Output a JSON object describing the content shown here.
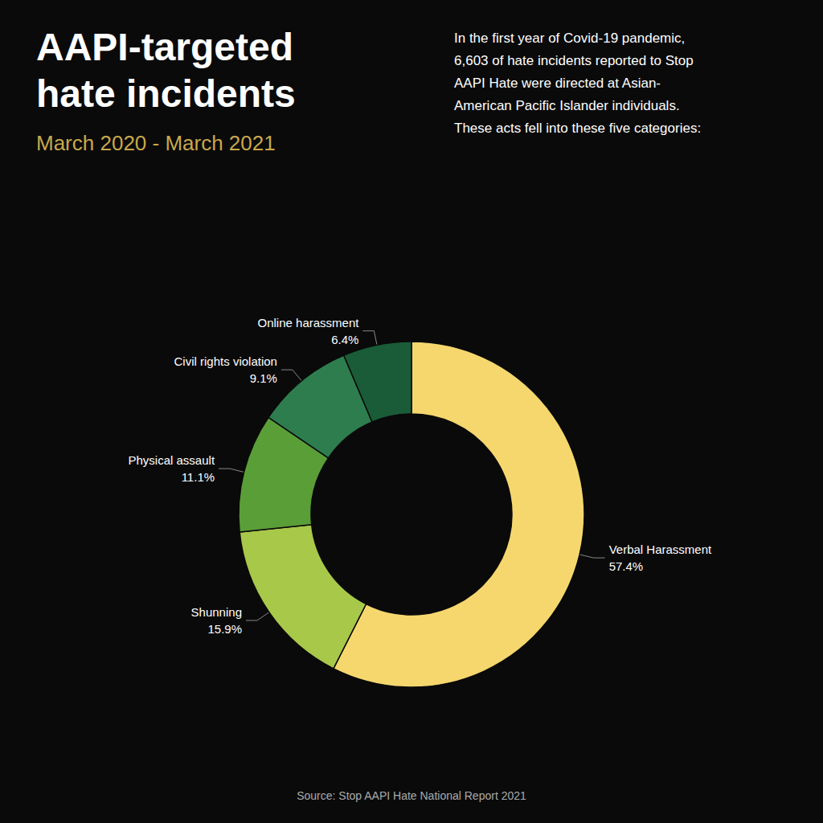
{
  "chart_data": {
    "type": "pie",
    "title": "AAPI-targeted\nhate incidents",
    "subtitle": "March 2020 - March 2021",
    "annotations": [
      "In the first year of Covid-19 pandemic,\n6,603 of hate incidents reported to Stop\nAAPI Hate were directed at Asian-\nAmerican Pacific Islander individuals.\nThese acts fell into these five categories:",
      "Source: Stop AAPI Hate National Report 2021"
    ],
    "categories": [
      "Verbal Harassment",
      "Shunning",
      "Physical assault",
      "Civil rights violation",
      "Online harassment"
    ],
    "values": [
      57.4,
      15.9,
      11.1,
      9.1,
      6.4
    ],
    "value_labels": [
      "57.4%",
      "15.9%",
      "11.1%",
      "9.1%",
      "6.4%"
    ],
    "colors": [
      "#F5D76E",
      "#A8C84A",
      "#5A9E38",
      "#2E7D4F",
      "#1A5C38"
    ],
    "data_labels": true
  }
}
